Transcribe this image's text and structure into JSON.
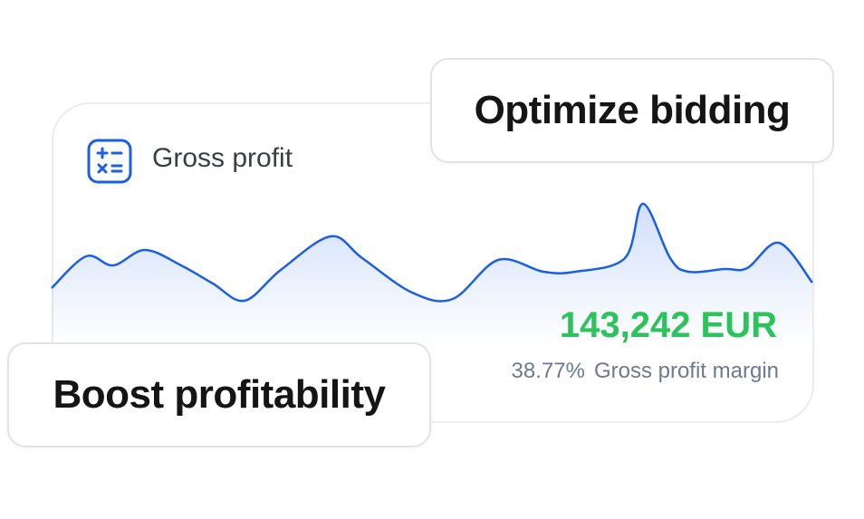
{
  "card": {
    "label": "Gross profit",
    "value": "143,242 EUR",
    "margin": "38.77%",
    "margin_label": "Gross profit margin"
  },
  "badges": [
    "Optimize bidding",
    "Boost profitability"
  ]
}
